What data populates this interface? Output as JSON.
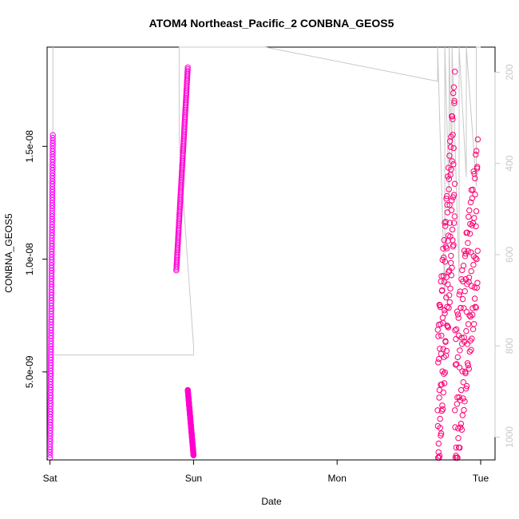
{
  "chart_data": {
    "type": "scatter",
    "title": "ATOM4 Northeast_Pacific_2 CONBNA_GEOS5",
    "xlabel": "Date",
    "ylabel": "CONBNA_GEOS5",
    "x_unit": "days",
    "xlim": [
      -0.02,
      3.1
    ],
    "ylim": [
      1.1e-09,
      1.94e-08
    ],
    "x_ticks": [
      {
        "value": 0,
        "label": "Sat"
      },
      {
        "value": 1,
        "label": "Sun"
      },
      {
        "value": 2,
        "label": "Mon"
      },
      {
        "value": 3,
        "label": "Tue"
      }
    ],
    "y_ticks": [
      {
        "value": 5e-09,
        "label": "5.0e-09"
      },
      {
        "value": 1e-08,
        "label": "1.0e-08"
      },
      {
        "value": 1.5e-08,
        "label": "1.5e-08"
      }
    ],
    "y2lim": [
      1050,
      145
    ],
    "y2_ticks": [
      {
        "value": 200,
        "label": "200"
      },
      {
        "value": 400,
        "label": "400"
      },
      {
        "value": 600,
        "label": "600"
      },
      {
        "value": 800,
        "label": "800"
      },
      {
        "value": 1000,
        "label": "1000"
      }
    ],
    "series": [
      {
        "marker": "open-circle",
        "color_start": "#ff00ff",
        "color_end": "#ff0066",
        "segments": [
          {
            "x": [
              0.0,
              0.02
            ],
            "y": [
              1.2e-09,
              1.55e-08
            ]
          },
          {
            "x": [
              0.88,
              0.96
            ],
            "y": [
              9.5e-09,
              1.85e-08
            ]
          },
          {
            "x": [
              0.96,
              1.0
            ],
            "y": [
              4.2e-09,
              1.3e-09
            ]
          },
          {
            "x": [
              2.7,
              2.82
            ],
            "y": [
              3.3e-09,
              1.5e-08
            ]
          },
          {
            "x": [
              2.82,
              2.98
            ],
            "y": [
              3.3e-09,
              1.2e-08
            ]
          }
        ]
      }
    ],
    "pressure_line": {
      "color": "#c8c8c8",
      "x": [
        0.0,
        0.02,
        0.02,
        0.02,
        0.02,
        1.0,
        1.0,
        0.9,
        0.9,
        1.0,
        1.0,
        1.5,
        2.7,
        2.7,
        2.75,
        2.75,
        2.78,
        2.78,
        2.8,
        2.8,
        2.85,
        2.85,
        2.9,
        2.9,
        2.97,
        2.97,
        3.0
      ],
      "y": [
        1040,
        1010,
        340,
        145,
        820,
        820,
        800,
        350,
        145,
        145,
        145,
        145,
        220,
        145,
        700,
        145,
        480,
        145,
        420,
        145,
        650,
        145,
        430,
        145,
        450,
        145,
        145
      ]
    }
  }
}
